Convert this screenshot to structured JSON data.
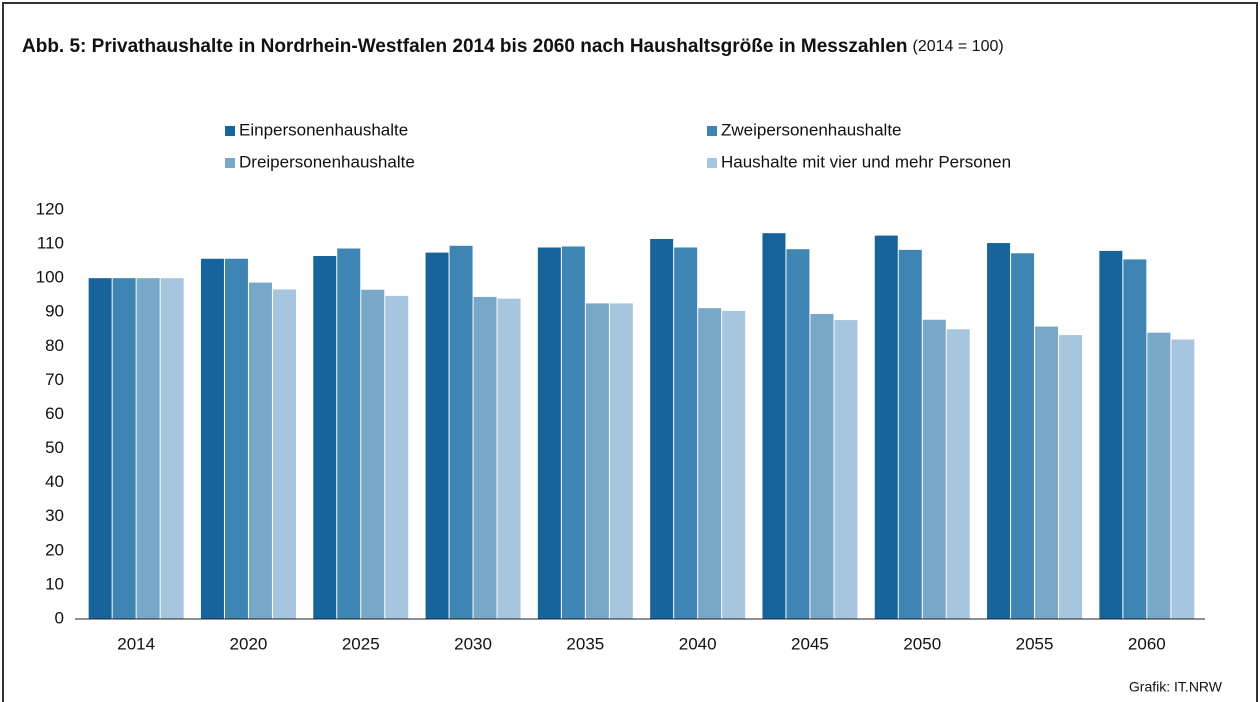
{
  "chart_data": {
    "type": "bar",
    "title": "Abb. 5: Privathaushalte in Nordrhein-Westfalen 2014 bis 2060 nach Haushaltsgröße in Messzahlen",
    "subtitle": "(2014 = 100)",
    "source": "Grafik: IT.NRW",
    "categories": [
      "2014",
      "2020",
      "2025",
      "2030",
      "2035",
      "2040",
      "2045",
      "2050",
      "2055",
      "2060"
    ],
    "series": [
      {
        "name": "Einpersonenhaushalte",
        "color": "#17649c",
        "values": [
          100,
          105.7,
          106.5,
          107.5,
          109,
          111.5,
          113.2,
          112.5,
          110.3,
          108
        ]
      },
      {
        "name": "Zweipersonenhaushalte",
        "color": "#3f85b3",
        "values": [
          100,
          105.7,
          108.7,
          109.5,
          109.3,
          109,
          108.5,
          108.3,
          107.3,
          105.5
        ]
      },
      {
        "name": "Dreipersonenhaushalte",
        "color": "#77a7c9",
        "values": [
          100,
          98.7,
          96.6,
          94.5,
          92.6,
          91.2,
          89.5,
          87.8,
          85.8,
          84
        ]
      },
      {
        "name": "Haushalte mit vier und mehr Personen",
        "color": "#a7c5de",
        "values": [
          100,
          96.7,
          94.8,
          94,
          92.6,
          90.4,
          87.7,
          85,
          83.3,
          82
        ]
      }
    ],
    "ylim": [
      0,
      120
    ],
    "yticks": [
      0,
      10,
      20,
      30,
      40,
      50,
      60,
      70,
      80,
      90,
      100,
      110,
      120
    ],
    "grid": false,
    "legend": "top"
  }
}
